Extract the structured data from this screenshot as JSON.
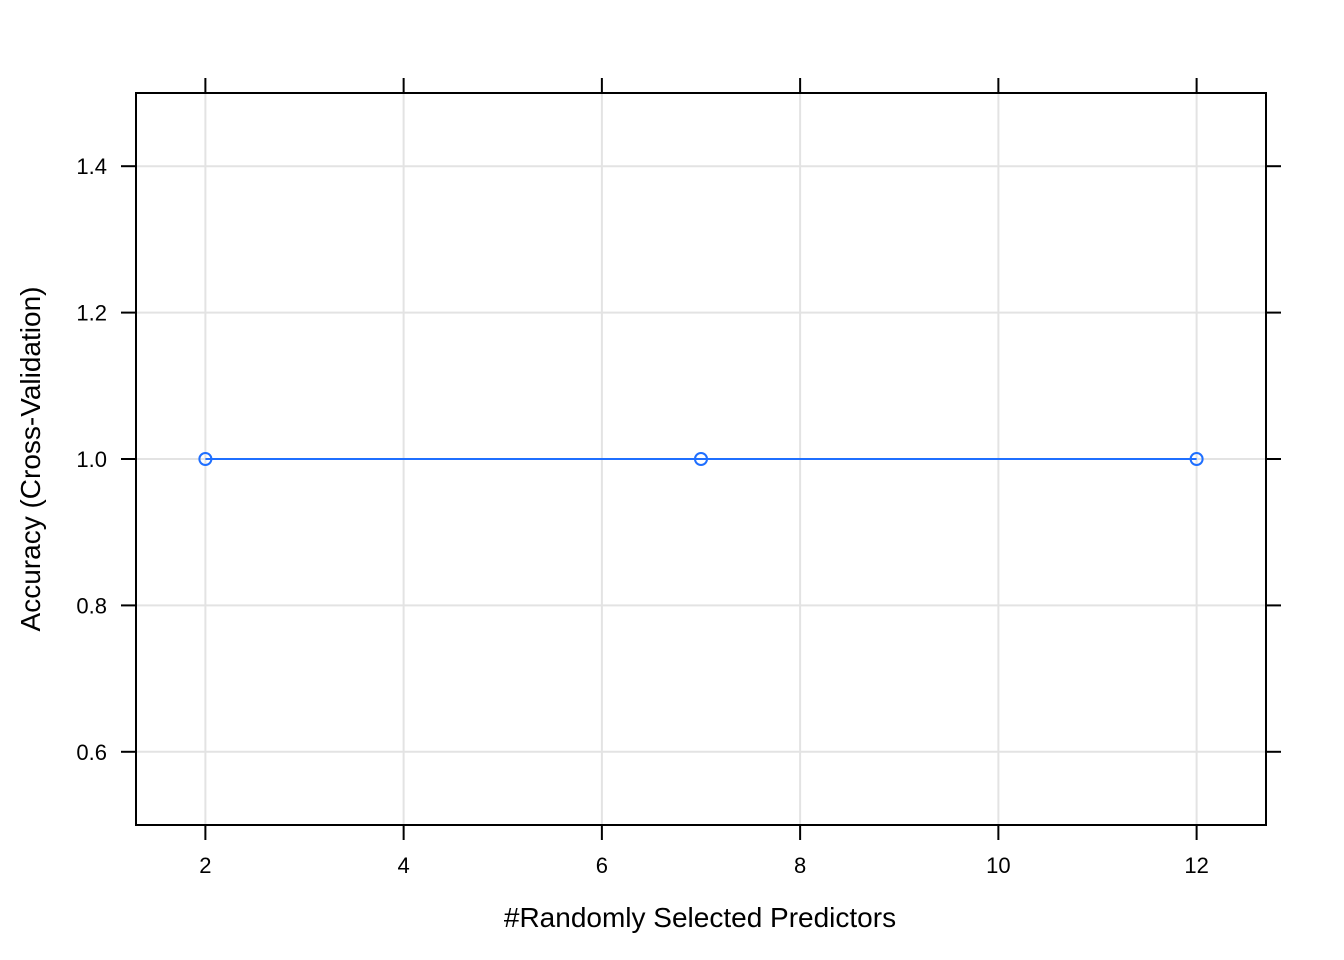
{
  "chart_data": {
    "type": "line",
    "title": "",
    "xlabel": "#Randomly Selected Predictors",
    "ylabel": "Accuracy (Cross-Validation)",
    "xlim": [
      1.3,
      12.7
    ],
    "ylim": [
      0.5,
      1.5
    ],
    "x_ticks": [
      2,
      4,
      6,
      8,
      10,
      12
    ],
    "y_ticks": [
      0.6,
      0.8,
      1.0,
      1.2,
      1.4
    ],
    "x_tick_labels": [
      "2",
      "4",
      "6",
      "8",
      "10",
      "12"
    ],
    "y_tick_labels": [
      "0.6",
      "0.8",
      "1.0",
      "1.2",
      "1.4"
    ],
    "grid": true,
    "series": [
      {
        "name": "Accuracy",
        "color": "#1f6fff",
        "x": [
          2,
          7,
          12
        ],
        "y": [
          1.0,
          1.0,
          1.0
        ]
      }
    ]
  }
}
